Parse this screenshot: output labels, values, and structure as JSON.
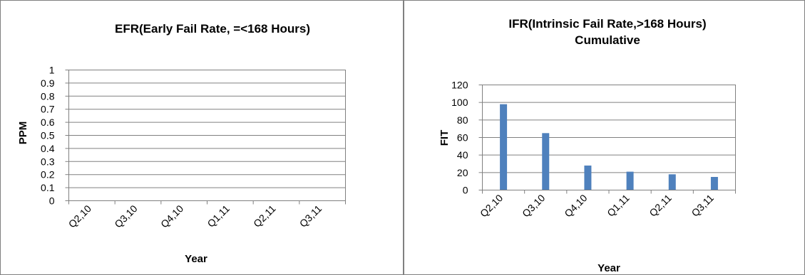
{
  "chart_data": [
    {
      "type": "bar",
      "title": "EFR(Early Fail Rate, =<168 Hours)",
      "xlabel": "Year",
      "ylabel": "PPM",
      "categories": [
        "Q2,10",
        "Q3,10",
        "Q4,10",
        "Q1,11",
        "Q2,11",
        "Q3,11"
      ],
      "values": [
        0,
        0,
        0,
        0,
        0,
        0
      ],
      "ylim": [
        0,
        1
      ],
      "yticks": [
        "0",
        "0.1",
        "0.2",
        "0.3",
        "0.4",
        "0.5",
        "0.6",
        "0.7",
        "0.8",
        "0.9",
        "1"
      ],
      "grid": true,
      "legend": "none"
    },
    {
      "type": "bar",
      "title": [
        "IFR(Intrinsic Fail Rate,>168 Hours)",
        "Cumulative"
      ],
      "xlabel": "Year",
      "ylabel": "FIT",
      "categories": [
        "Q2,10",
        "Q3,10",
        "Q4,10",
        "Q1,11",
        "Q2,11",
        "Q3,11"
      ],
      "values": [
        98,
        65,
        28,
        21,
        18,
        15
      ],
      "ylim": [
        0,
        120
      ],
      "yticks": [
        "0",
        "20",
        "40",
        "60",
        "80",
        "100",
        "120"
      ],
      "grid": true,
      "legend": "none",
      "bar_color": "#4F81BD"
    }
  ]
}
